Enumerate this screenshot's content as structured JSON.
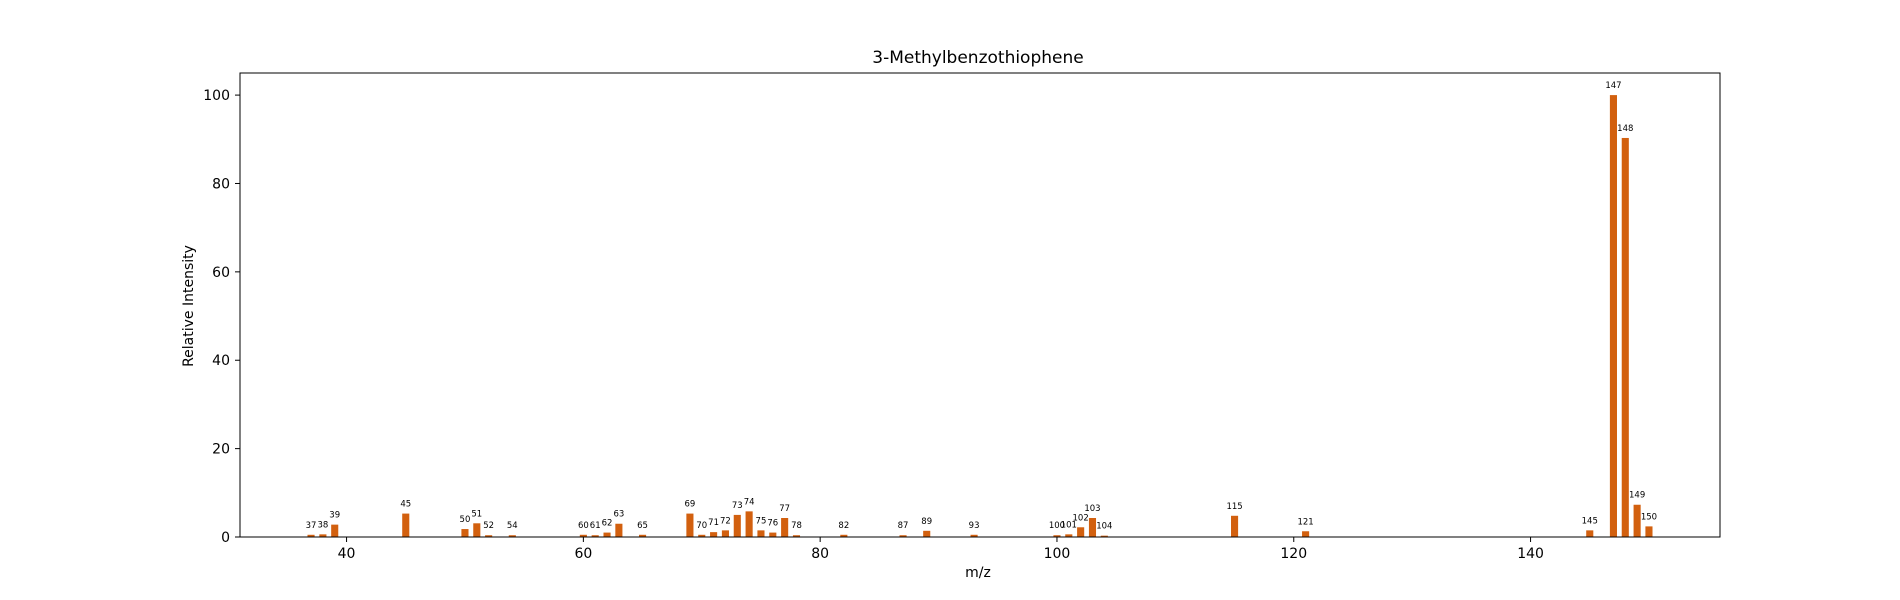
{
  "chart_data": {
    "type": "bar",
    "title": "3-Methylbenzothiophene",
    "xlabel": "m/z",
    "ylabel": "Relative Intensity",
    "xlim": [
      31,
      156
    ],
    "ylim": [
      0,
      105
    ],
    "xticks": [
      40,
      60,
      80,
      100,
      120,
      140
    ],
    "yticks": [
      0,
      20,
      40,
      60,
      80,
      100
    ],
    "grid": false,
    "bar_color": "#d2600f",
    "peaks": [
      {
        "mz": 37,
        "intensity": 0.5
      },
      {
        "mz": 38,
        "intensity": 0.6
      },
      {
        "mz": 39,
        "intensity": 2.8
      },
      {
        "mz": 45,
        "intensity": 5.3
      },
      {
        "mz": 50,
        "intensity": 1.8
      },
      {
        "mz": 51,
        "intensity": 3.1
      },
      {
        "mz": 52,
        "intensity": 0.4
      },
      {
        "mz": 54,
        "intensity": 0.4
      },
      {
        "mz": 60,
        "intensity": 0.5
      },
      {
        "mz": 61,
        "intensity": 0.4
      },
      {
        "mz": 62,
        "intensity": 1.0
      },
      {
        "mz": 63,
        "intensity": 3.0
      },
      {
        "mz": 65,
        "intensity": 0.5
      },
      {
        "mz": 69,
        "intensity": 5.3
      },
      {
        "mz": 70,
        "intensity": 0.5
      },
      {
        "mz": 71,
        "intensity": 1.1
      },
      {
        "mz": 72,
        "intensity": 1.5
      },
      {
        "mz": 73,
        "intensity": 5.0
      },
      {
        "mz": 74,
        "intensity": 5.8
      },
      {
        "mz": 75,
        "intensity": 1.5
      },
      {
        "mz": 76,
        "intensity": 1.0
      },
      {
        "mz": 77,
        "intensity": 4.3
      },
      {
        "mz": 78,
        "intensity": 0.4
      },
      {
        "mz": 82,
        "intensity": 0.5
      },
      {
        "mz": 87,
        "intensity": 0.4
      },
      {
        "mz": 89,
        "intensity": 1.4
      },
      {
        "mz": 93,
        "intensity": 0.5
      },
      {
        "mz": 100,
        "intensity": 0.4
      },
      {
        "mz": 101,
        "intensity": 0.6
      },
      {
        "mz": 102,
        "intensity": 2.2
      },
      {
        "mz": 103,
        "intensity": 4.3
      },
      {
        "mz": 104,
        "intensity": 0.3
      },
      {
        "mz": 115,
        "intensity": 4.8
      },
      {
        "mz": 121,
        "intensity": 1.3
      },
      {
        "mz": 145,
        "intensity": 1.5
      },
      {
        "mz": 147,
        "intensity": 100
      },
      {
        "mz": 148,
        "intensity": 90.3
      },
      {
        "mz": 149,
        "intensity": 7.3
      },
      {
        "mz": 150,
        "intensity": 2.4
      }
    ]
  }
}
